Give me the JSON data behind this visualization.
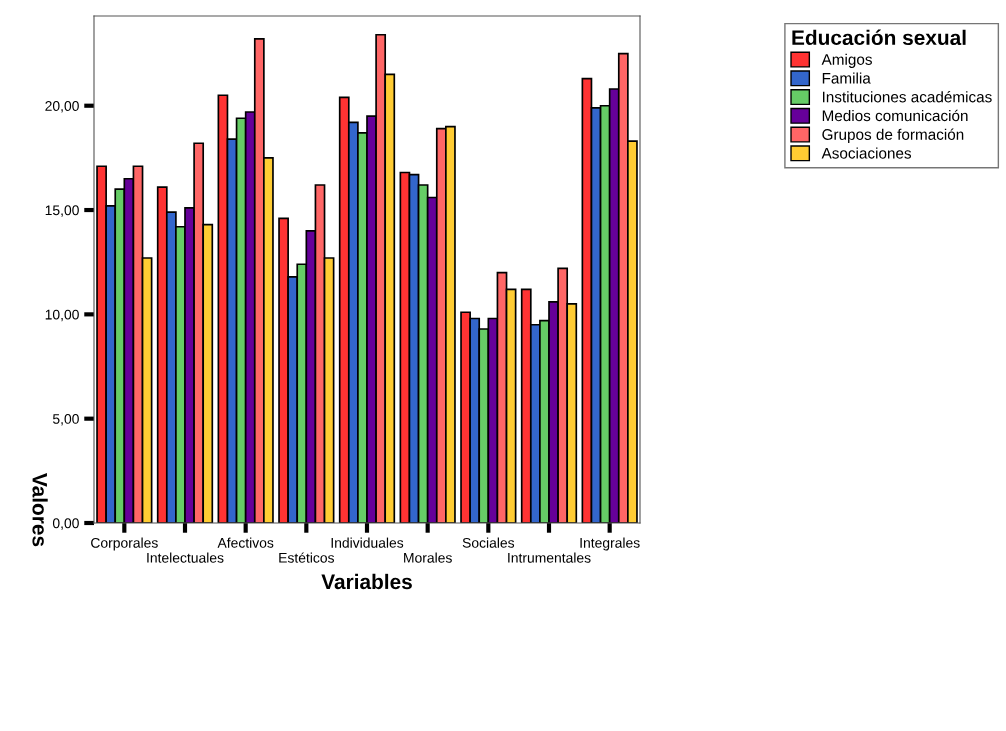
{
  "chart_data": {
    "type": "bar",
    "xlabel": "Variables",
    "ylabel": "Valores",
    "legend_title": "Educación sexual",
    "legend": "top right",
    "grid": false,
    "categories": [
      "Corporales",
      "Intelectuales",
      "Afectivos",
      "Estéticos",
      "Individuales",
      "Morales",
      "Sociales",
      "Intrumentales",
      "Integrales"
    ],
    "ylim": [
      0,
      24.3
    ],
    "yticks": [
      {
        "value": 0,
        "label": "0,00"
      },
      {
        "value": 5,
        "label": "5,00"
      },
      {
        "value": 10,
        "label": "10,00"
      },
      {
        "value": 15,
        "label": "15,00"
      },
      {
        "value": 20,
        "label": "20,00"
      }
    ],
    "series": [
      {
        "name": "Amigos",
        "color": "#ff3333",
        "values": [
          17.1,
          16.1,
          20.5,
          14.6,
          20.4,
          16.8,
          10.1,
          11.2,
          21.3
        ]
      },
      {
        "name": "Familia",
        "color": "#3366cc",
        "values": [
          15.2,
          14.9,
          18.4,
          11.8,
          19.2,
          16.7,
          9.8,
          9.5,
          19.9
        ]
      },
      {
        "name": "Instituciones académicas",
        "color": "#66cc66",
        "values": [
          16.0,
          14.2,
          19.4,
          12.4,
          18.7,
          16.2,
          9.3,
          9.7,
          20.0
        ]
      },
      {
        "name": "Medios comunicación",
        "color": "#660099",
        "values": [
          16.5,
          15.1,
          19.7,
          14.0,
          19.5,
          15.6,
          9.8,
          10.6,
          20.8
        ]
      },
      {
        "name": "Grupos de formación",
        "color": "#ff6666",
        "values": [
          17.1,
          18.2,
          23.2,
          16.2,
          23.4,
          18.9,
          12.0,
          12.2,
          22.5
        ]
      },
      {
        "name": "Asociaciones",
        "color": "#ffcc33",
        "values": [
          12.7,
          14.3,
          17.5,
          12.7,
          21.5,
          19.0,
          11.2,
          10.5,
          18.3
        ]
      }
    ]
  }
}
